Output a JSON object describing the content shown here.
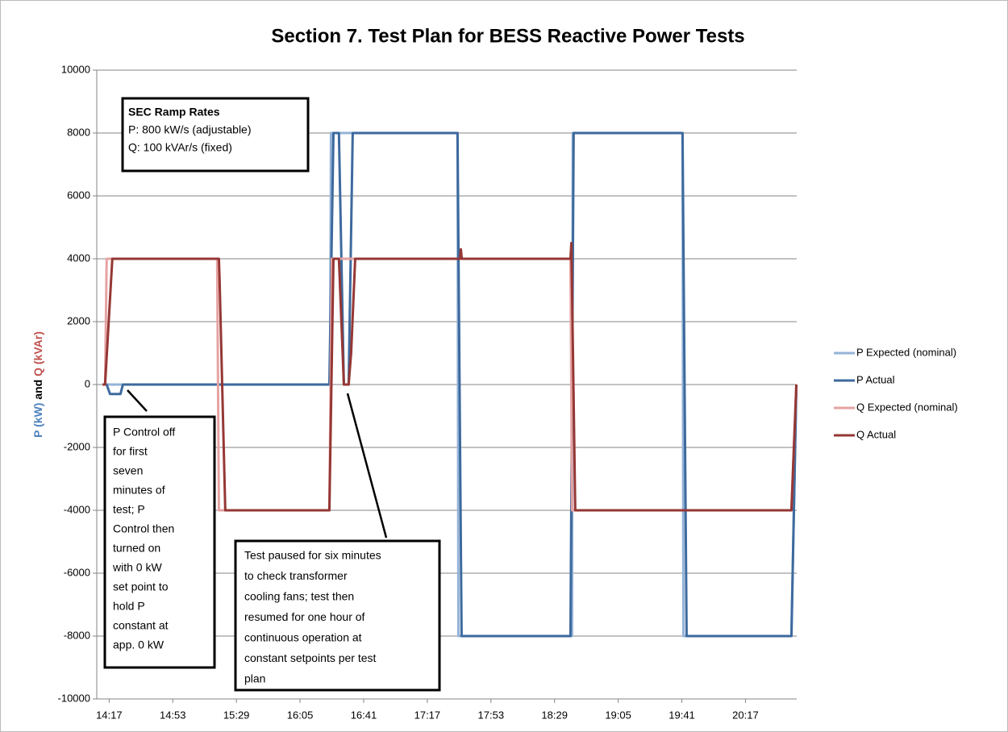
{
  "chart_data": {
    "type": "line",
    "title": "Section 7. Test Plan for BESS Reactive Power Tests",
    "y_label": [
      "P (kW)",
      "and",
      "Q (kVAr)"
    ],
    "xlim": [
      850,
      1246
    ],
    "xticks": [
      {
        "value": 857,
        "label": "14:17"
      },
      {
        "value": 893,
        "label": "14:53"
      },
      {
        "value": 929,
        "label": "15:29"
      },
      {
        "value": 965,
        "label": "16:05"
      },
      {
        "value": 1001,
        "label": "16:41"
      },
      {
        "value": 1037,
        "label": "17:17"
      },
      {
        "value": 1073,
        "label": "17:53"
      },
      {
        "value": 1109,
        "label": "18:29"
      },
      {
        "value": 1145,
        "label": "19:05"
      },
      {
        "value": 1181,
        "label": "19:41"
      },
      {
        "value": 1217,
        "label": "20:17"
      }
    ],
    "ylim": [
      -10000,
      10000
    ],
    "yticks": [
      -10000,
      -8000,
      -6000,
      -4000,
      -2000,
      0,
      2000,
      4000,
      6000,
      8000,
      10000
    ],
    "grid": true,
    "legend": "right",
    "series": [
      {
        "name": "P Expected (nominal)",
        "color": "#95b3d7",
        "x": [
          853.3,
          982,
          982.5,
          1054.1,
          1054.6,
          1118.9,
          1119.3,
          1181.4,
          1181.9,
          1243,
          1245.8
        ],
        "values": [
          0,
          0,
          8000,
          8000,
          -8000,
          -8000,
          8000,
          8000,
          -8000,
          -8000,
          0
        ]
      },
      {
        "name": "P Actual",
        "color": "#3d6a9e",
        "x": [
          853.3,
          855.6,
          857.5,
          863.4,
          864.8,
          981.6,
          983.9,
          987,
          989.8,
          992.5,
          994.8,
          1054.1,
          1056.4,
          1118,
          1119.8,
          1181.4,
          1183.7,
          1243,
          1245.8
        ],
        "values": [
          0,
          0,
          -300,
          -300,
          0,
          0,
          8000,
          8000,
          0,
          0,
          8000,
          8000,
          -8000,
          -8000,
          8000,
          8000,
          -8000,
          -8000,
          0
        ]
      },
      {
        "name": "Q Expected (nominal)",
        "color": "#e6a3a2",
        "x": [
          853.3,
          854.7,
          855.6,
          918.1,
          919.1,
          981.6,
          983,
          1118,
          1118.9,
          1243,
          1245.8
        ],
        "values": [
          0,
          0,
          4000,
          4000,
          -4000,
          -4000,
          4000,
          4000,
          -4000,
          -4000,
          0
        ]
      },
      {
        "name": "Q Actual",
        "color": "#953735",
        "x": [
          853.3,
          854.7,
          858.8,
          919.1,
          919.5,
          922.7,
          981.6,
          983.9,
          987,
          989.8,
          992.5,
          993.9,
          996.2,
          1055.5,
          1056,
          1056.5,
          1118,
          1118.5,
          1120.7,
          1243,
          1245.8
        ],
        "values": [
          0,
          0,
          4000,
          4000,
          3300,
          -4000,
          -4000,
          4000,
          4000,
          0,
          0,
          1000,
          4000,
          4000,
          4300,
          4000,
          4000,
          4500,
          -4000,
          -4000,
          0
        ]
      }
    ],
    "annotations": [
      {
        "title": "SEC Ramp Rates",
        "lines": [
          "P: 800 kW/s (adjustable)",
          "Q: 100 kVAr/s (fixed)"
        ]
      },
      {
        "lines": [
          "P Control off",
          "for first",
          "seven",
          "minutes of",
          "test; P",
          "Control then",
          "turned on",
          "with 0 kW",
          "set point to",
          "hold P",
          "constant at",
          "app. 0 kW"
        ]
      },
      {
        "lines": [
          "Test paused for six minutes",
          "to check transformer",
          "cooling fans; test then",
          "resumed for one hour of",
          "continuous operation at",
          "constant setpoints per test",
          "plan"
        ]
      }
    ]
  }
}
